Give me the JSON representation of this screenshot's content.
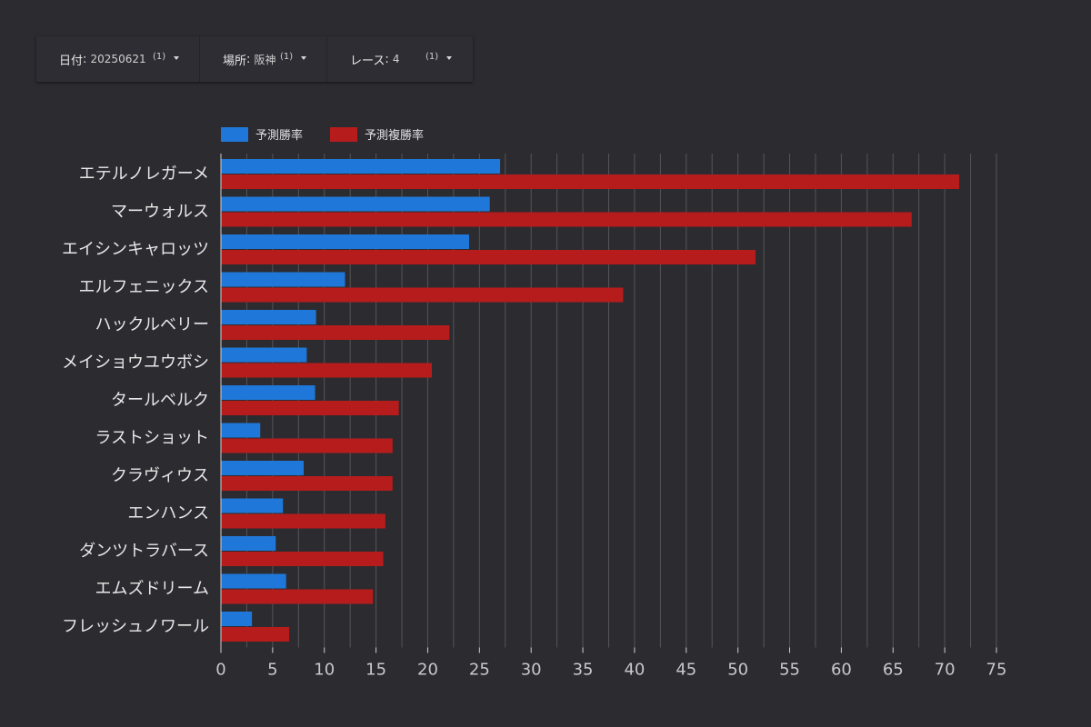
{
  "filters": [
    {
      "label": "日付",
      "value": "20250621",
      "count": "(1)"
    },
    {
      "label": "場所",
      "value": "阪神",
      "count": "(1)"
    },
    {
      "label": "レース",
      "value": "4",
      "count": "(1)"
    }
  ],
  "colors": {
    "background": "#2c2b30",
    "win": "#1f78d9",
    "place": "#b71c1c",
    "grid": "#55545a",
    "axis": "#cfcfcf"
  },
  "chart_data": {
    "type": "bar",
    "orientation": "horizontal",
    "legend_position": "top",
    "grid": true,
    "xlim": [
      0,
      75
    ],
    "xticks": [
      0,
      5,
      10,
      15,
      20,
      25,
      30,
      35,
      40,
      45,
      50,
      55,
      60,
      65,
      70,
      75
    ],
    "categories": [
      "エテルノレガーメ",
      "マーウォルス",
      "エイシンキャロッツ",
      "エルフェニックス",
      "ハックルベリー",
      "メイショウユウボシ",
      "タールベルク",
      "ラストショット",
      "クラヴィウス",
      "エンハンス",
      "ダンツトラバース",
      "エムズドリーム",
      "フレッシュノワール"
    ],
    "series": [
      {
        "name": "予測勝率",
        "color": "#1f78d9",
        "values": [
          27.0,
          26.0,
          24.0,
          12.0,
          9.2,
          8.3,
          9.1,
          3.8,
          8.0,
          6.0,
          5.3,
          6.3,
          3.0
        ]
      },
      {
        "name": "予測複勝率",
        "color": "#b71c1c",
        "values": [
          71.4,
          66.8,
          51.7,
          38.9,
          22.1,
          20.4,
          17.2,
          16.6,
          16.6,
          15.9,
          15.7,
          14.7,
          6.6
        ]
      }
    ]
  }
}
